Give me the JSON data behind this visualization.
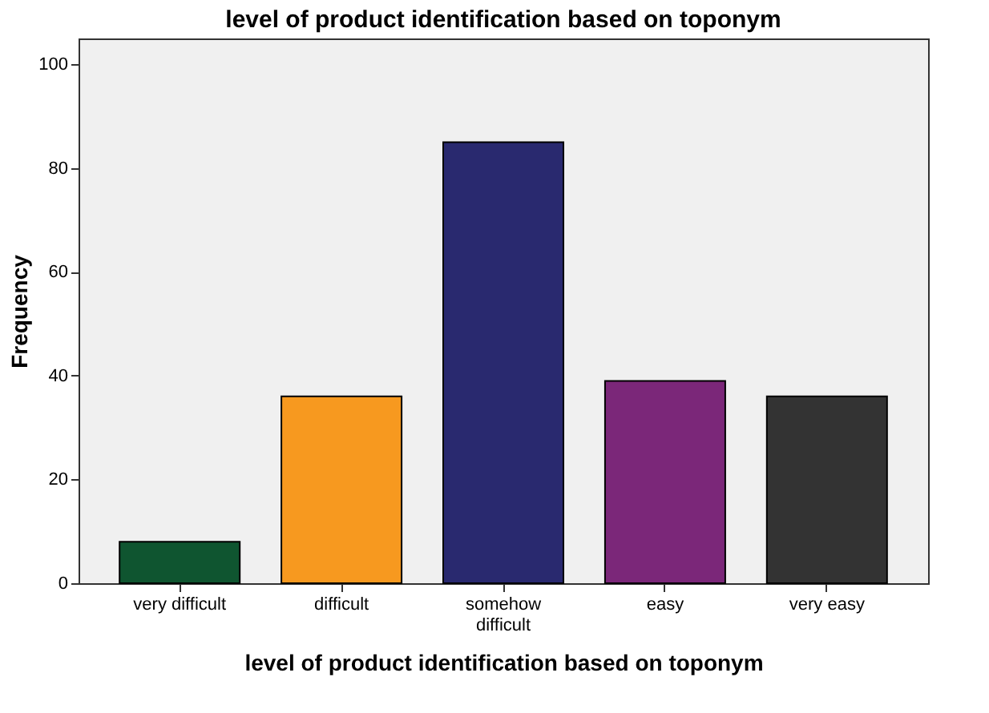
{
  "chart_data": {
    "type": "bar",
    "title": "level of product identification based on toponym",
    "xlabel": "level of product identification based on toponym",
    "ylabel": "Frequency",
    "categories": [
      "very difficult",
      "difficult",
      "somehow difficult",
      "easy",
      "very easy"
    ],
    "values": [
      8,
      36,
      85,
      39,
      36
    ],
    "colors": [
      "#0f5530",
      "#f7991f",
      "#29296f",
      "#7b2779",
      "#333333"
    ],
    "ylim": [
      0,
      105
    ],
    "yticks": [
      0,
      20,
      40,
      60,
      80,
      100
    ],
    "grid": false,
    "legend": false
  }
}
